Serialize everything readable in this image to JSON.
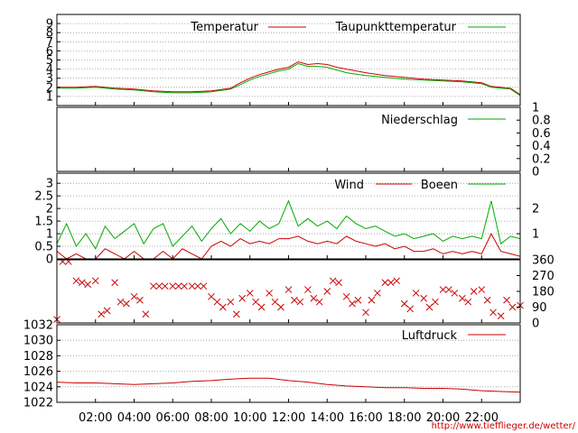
{
  "colors": {
    "red": "#cc0000",
    "green": "#00aa00",
    "grid": "#999999",
    "frame": "#000000"
  },
  "credit": "http://www.tiefflieger.de/wetter/",
  "chart_data": [
    {
      "type": "line",
      "id": "temperature",
      "ylim": [
        0,
        10
      ],
      "left_ticks": [
        "1",
        "2",
        "3",
        "4",
        "5",
        "6",
        "7",
        "8",
        "9"
      ],
      "x_ticks": [
        "02:00",
        "04:00",
        "06:00",
        "08:00",
        "10:00",
        "12:00",
        "14:00",
        "16:00",
        "18:00",
        "20:00",
        "22:00"
      ],
      "series": [
        {
          "name": "Temperatur",
          "color": "red",
          "x": [
            0,
            1,
            2,
            3,
            4,
            5,
            6,
            7,
            8,
            9,
            9.5,
            10,
            10.5,
            11,
            11.5,
            12,
            12.5,
            13,
            13.5,
            14,
            14.5,
            15,
            16,
            17,
            18,
            19,
            20,
            21,
            22,
            22.5,
            23,
            23.5,
            24
          ],
          "values": [
            2.0,
            2.0,
            2.1,
            1.9,
            1.8,
            1.6,
            1.5,
            1.5,
            1.6,
            1.9,
            2.5,
            3.0,
            3.4,
            3.7,
            4.0,
            4.2,
            4.8,
            4.5,
            4.6,
            4.5,
            4.2,
            4.0,
            3.6,
            3.3,
            3.1,
            2.9,
            2.8,
            2.7,
            2.5,
            2.1,
            2.0,
            1.9,
            1.2
          ]
        },
        {
          "name": "Taupunkttemperatur",
          "color": "green",
          "x": [
            0,
            1,
            2,
            3,
            4,
            5,
            6,
            7,
            8,
            9,
            9.5,
            10,
            10.5,
            11,
            11.5,
            12,
            12.5,
            13,
            13.5,
            14,
            14.5,
            15,
            16,
            17,
            18,
            19,
            20,
            21,
            22,
            22.5,
            23,
            23.5,
            24
          ],
          "values": [
            1.9,
            1.9,
            2.0,
            1.8,
            1.7,
            1.5,
            1.4,
            1.4,
            1.5,
            1.8,
            2.3,
            2.8,
            3.2,
            3.5,
            3.8,
            4.0,
            4.6,
            4.3,
            4.3,
            4.2,
            3.9,
            3.6,
            3.3,
            3.1,
            2.9,
            2.8,
            2.7,
            2.6,
            2.4,
            2.0,
            1.9,
            1.8,
            1.1
          ]
        }
      ]
    },
    {
      "type": "line",
      "id": "precipitation",
      "ylim": [
        0,
        1
      ],
      "right_ticks": [
        "0",
        "0.2",
        "0.4",
        "0.6",
        "0.8",
        "1"
      ],
      "series": [
        {
          "name": "Niederschlag",
          "color": "green",
          "x": [
            0,
            24
          ],
          "values": [
            0,
            0
          ]
        }
      ]
    },
    {
      "type": "line",
      "id": "wind",
      "ylim": [
        0,
        3.4
      ],
      "left_ticks": [
        "0",
        "0.5",
        "1",
        "1.5",
        "2",
        "2.5",
        "3"
      ],
      "right_ticks": [
        "1",
        "2"
      ],
      "series": [
        {
          "name": "Wind",
          "color": "red",
          "x": [
            0,
            0.5,
            1,
            1.5,
            2,
            2.5,
            3,
            3.5,
            4,
            4.5,
            5,
            5.5,
            6,
            6.5,
            7,
            7.5,
            8,
            8.5,
            9,
            9.5,
            10,
            10.5,
            11,
            11.5,
            12,
            12.5,
            13,
            13.5,
            14,
            14.5,
            15,
            15.5,
            16,
            16.5,
            17,
            17.5,
            18,
            18.5,
            19,
            19.5,
            20,
            20.5,
            21,
            21.5,
            22,
            22.5,
            23,
            23.5,
            24
          ],
          "values": [
            0.3,
            0,
            0.2,
            0,
            0,
            0.4,
            0.2,
            0,
            0.3,
            0,
            0,
            0.3,
            0,
            0.4,
            0.2,
            0,
            0.5,
            0.7,
            0.5,
            0.8,
            0.6,
            0.7,
            0.6,
            0.8,
            0.8,
            0.9,
            0.7,
            0.6,
            0.7,
            0.6,
            0.9,
            0.7,
            0.6,
            0.5,
            0.6,
            0.4,
            0.5,
            0.3,
            0.3,
            0.4,
            0.2,
            0.3,
            0.2,
            0.3,
            0.2,
            1.0,
            0.3,
            0.2,
            0.1
          ]
        },
        {
          "name": "Boeen",
          "color": "green",
          "x": [
            0,
            0.5,
            1,
            1.5,
            2,
            2.5,
            3,
            3.5,
            4,
            4.5,
            5,
            5.5,
            6,
            6.5,
            7,
            7.5,
            8,
            8.5,
            9,
            9.5,
            10,
            10.5,
            11,
            11.5,
            12,
            12.5,
            13,
            13.5,
            14,
            14.5,
            15,
            15.5,
            16,
            16.5,
            17,
            17.5,
            18,
            18.5,
            19,
            19.5,
            20,
            20.5,
            21,
            21.5,
            22,
            22.5,
            23,
            23.5,
            24
          ],
          "values": [
            0.6,
            1.4,
            0.5,
            1.0,
            0.4,
            1.3,
            0.8,
            1.1,
            1.4,
            0.6,
            1.2,
            1.4,
            0.5,
            0.9,
            1.3,
            0.7,
            1.2,
            1.6,
            1.0,
            1.4,
            1.1,
            1.5,
            1.2,
            1.4,
            2.3,
            1.3,
            1.6,
            1.3,
            1.5,
            1.2,
            1.7,
            1.4,
            1.2,
            1.3,
            1.1,
            0.9,
            1.0,
            0.8,
            0.9,
            1.0,
            0.7,
            0.9,
            0.8,
            0.9,
            0.8,
            2.3,
            0.6,
            0.9,
            0.8
          ]
        }
      ]
    },
    {
      "type": "scatter",
      "id": "wind_direction",
      "ylim": [
        0,
        360
      ],
      "right_ticks": [
        "0",
        "90",
        "180",
        "270",
        "360"
      ],
      "series": [
        {
          "name": "",
          "color": "red",
          "x": [
            0,
            0.3,
            0.6,
            1,
            1.3,
            1.6,
            2,
            2.3,
            2.6,
            3,
            3.3,
            3.6,
            4,
            4.3,
            4.6,
            5,
            5.3,
            5.6,
            6,
            6.3,
            6.6,
            7,
            7.3,
            7.6,
            8,
            8.3,
            8.6,
            9,
            9.3,
            9.6,
            10,
            10.3,
            10.6,
            11,
            11.3,
            11.6,
            12,
            12.3,
            12.6,
            13,
            13.3,
            13.6,
            14,
            14.3,
            14.6,
            15,
            15.3,
            15.6,
            16,
            16.3,
            16.6,
            17,
            17.3,
            17.6,
            18,
            18.3,
            18.6,
            19,
            19.3,
            19.6,
            20,
            20.3,
            20.6,
            21,
            21.3,
            21.6,
            22,
            22.3,
            22.6,
            23,
            23.3,
            23.6,
            24
          ],
          "values": [
            20,
            350,
            350,
            240,
            230,
            220,
            240,
            50,
            70,
            230,
            120,
            110,
            150,
            130,
            50,
            210,
            210,
            210,
            210,
            210,
            210,
            210,
            210,
            210,
            150,
            120,
            90,
            120,
            50,
            140,
            170,
            120,
            90,
            170,
            120,
            90,
            190,
            130,
            120,
            190,
            140,
            120,
            180,
            240,
            230,
            150,
            110,
            130,
            60,
            130,
            170,
            230,
            230,
            240,
            110,
            80,
            170,
            140,
            90,
            120,
            190,
            190,
            170,
            140,
            120,
            180,
            190,
            130,
            60,
            40,
            130,
            90,
            100
          ]
        }
      ]
    },
    {
      "type": "line",
      "id": "pressure",
      "ylim": [
        1022,
        1032
      ],
      "left_ticks": [
        "1022",
        "1024",
        "1026",
        "1028",
        "1030",
        "1032"
      ],
      "series": [
        {
          "name": "Luftdruck",
          "color": "red",
          "x": [
            0,
            1,
            2,
            3,
            4,
            5,
            6,
            7,
            8,
            9,
            10,
            11,
            12,
            13,
            14,
            15,
            16,
            17,
            18,
            19,
            20,
            21,
            22,
            23,
            24
          ],
          "values": [
            1024.6,
            1024.5,
            1024.5,
            1024.4,
            1024.3,
            1024.4,
            1024.5,
            1024.7,
            1024.8,
            1025.0,
            1025.1,
            1025.1,
            1024.8,
            1024.6,
            1024.3,
            1024.1,
            1024.0,
            1023.9,
            1023.9,
            1023.8,
            1023.8,
            1023.7,
            1023.5,
            1023.4,
            1023.3
          ]
        }
      ]
    }
  ]
}
